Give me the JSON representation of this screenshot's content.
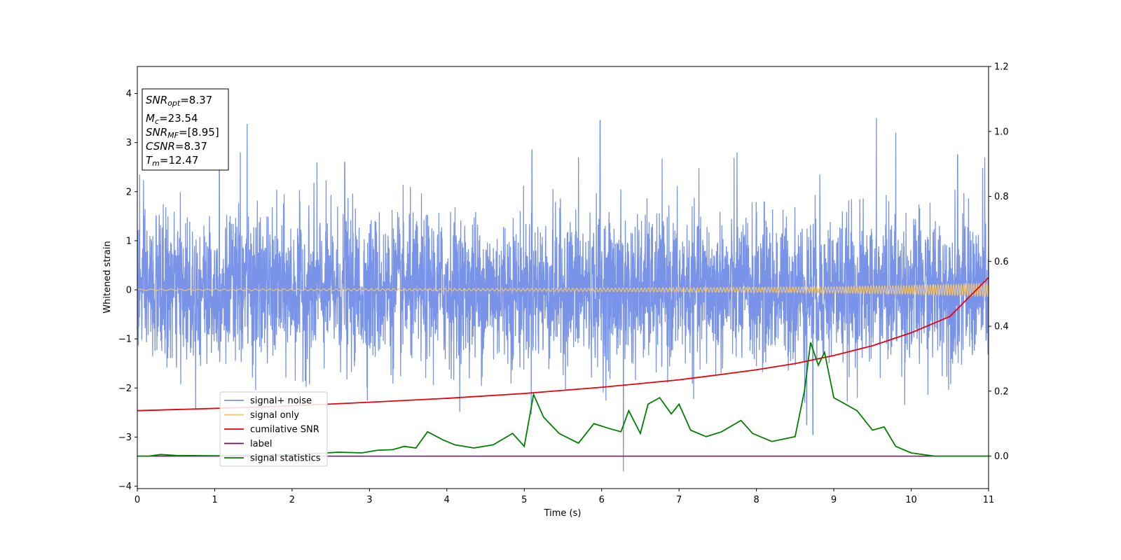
{
  "chart_data": {
    "type": "line",
    "xlabel": "Time (s)",
    "ylabel": "Whitened strain",
    "xlim": [
      0,
      11
    ],
    "ylim": [
      -4.05,
      4.55
    ],
    "y2lim": [
      -0.1,
      1.2
    ],
    "grid": false,
    "legend_position": "lower-left",
    "x_ticks": [
      "0",
      "1",
      "2",
      "3",
      "4",
      "5",
      "6",
      "7",
      "8",
      "9",
      "10",
      "11"
    ],
    "y_ticks": [
      "−4",
      "−3",
      "−2",
      "−1",
      "0",
      "1",
      "2",
      "3",
      "4"
    ],
    "y_tick_values": [
      -4,
      -3,
      -2,
      -1,
      0,
      1,
      2,
      3,
      4
    ],
    "y2_ticks": [
      "0.0",
      "0.2",
      "0.4",
      "0.6",
      "0.8",
      "1.0",
      "1.2"
    ],
    "y2_tick_values": [
      0,
      0.2,
      0.4,
      0.6,
      0.8,
      1.0,
      1.2
    ],
    "annotation": {
      "snr_opt": {
        "base": "SNR",
        "sub": "opt",
        "value": "=8.37"
      },
      "mc": {
        "base": "M",
        "sub": "c",
        "value": "=23.54"
      },
      "snr_mf": {
        "base": "SNR",
        "sub": "MF",
        "value": "=[8.95]"
      },
      "csnr": {
        "base": "CSNR",
        "sub": "",
        "value": "=8.37"
      },
      "tm": {
        "base": "T",
        "sub": "m",
        "value": "=12.47"
      }
    },
    "series": [
      {
        "name": "signal+ noise",
        "axis": "left",
        "color": "#7893e8",
        "stats": {
          "std": 0.75,
          "min": -3.7,
          "max": 3.5
        },
        "spikes": [
          [
            0.03,
            2.35
          ],
          [
            1.06,
            2.55
          ],
          [
            1.33,
            2.8
          ],
          [
            1.42,
            3.38
          ],
          [
            2.32,
            2.6
          ],
          [
            2.68,
            2.6
          ],
          [
            5.1,
            2.85
          ],
          [
            5.7,
            2.7
          ],
          [
            5.98,
            3.45
          ],
          [
            6.28,
            -3.7
          ],
          [
            7.75,
            2.8
          ],
          [
            8.65,
            -2.75
          ],
          [
            8.73,
            -2.95
          ],
          [
            8.82,
            2.35
          ],
          [
            9.55,
            3.52
          ],
          [
            9.8,
            3.2
          ],
          [
            10.6,
            2.75
          ],
          [
            10.95,
            2.7
          ]
        ]
      },
      {
        "name": "signal only",
        "axis": "left",
        "color": "#f5c46a",
        "points": [
          [
            0,
            0.015
          ],
          [
            2,
            0.02
          ],
          [
            4,
            0.025
          ],
          [
            6,
            0.035
          ],
          [
            8,
            0.05
          ],
          [
            9,
            0.065
          ],
          [
            10,
            0.09
          ],
          [
            11,
            0.13
          ]
        ]
      },
      {
        "name": "cumilative SNR",
        "axis": "right",
        "color": "#e8000b",
        "points": [
          [
            0,
            0.14
          ],
          [
            1,
            0.147
          ],
          [
            2,
            0.155
          ],
          [
            3,
            0.166
          ],
          [
            4,
            0.178
          ],
          [
            5,
            0.193
          ],
          [
            6,
            0.212
          ],
          [
            7,
            0.235
          ],
          [
            7.5,
            0.25
          ],
          [
            8,
            0.266
          ],
          [
            8.5,
            0.285
          ],
          [
            9,
            0.31
          ],
          [
            9.5,
            0.34
          ],
          [
            10,
            0.38
          ],
          [
            10.5,
            0.43
          ],
          [
            11,
            0.55
          ]
        ]
      },
      {
        "name": "label",
        "axis": "right",
        "color": "#800080",
        "points": [
          [
            0,
            0.0
          ],
          [
            11,
            0.0
          ]
        ]
      },
      {
        "name": "signal statistics",
        "axis": "right",
        "color": "#008000",
        "points": [
          [
            0,
            0.0
          ],
          [
            0.15,
            0.0
          ],
          [
            0.3,
            0.005
          ],
          [
            0.5,
            0.002
          ],
          [
            1.0,
            0.001
          ],
          [
            1.5,
            0.002
          ],
          [
            2.0,
            0.005
          ],
          [
            2.3,
            0.008
          ],
          [
            2.6,
            0.012
          ],
          [
            2.9,
            0.01
          ],
          [
            3.1,
            0.018
          ],
          [
            3.3,
            0.02
          ],
          [
            3.45,
            0.03
          ],
          [
            3.6,
            0.025
          ],
          [
            3.75,
            0.075
          ],
          [
            3.95,
            0.05
          ],
          [
            4.1,
            0.035
          ],
          [
            4.35,
            0.025
          ],
          [
            4.6,
            0.035
          ],
          [
            4.85,
            0.07
          ],
          [
            5.0,
            0.03
          ],
          [
            5.12,
            0.19
          ],
          [
            5.25,
            0.12
          ],
          [
            5.45,
            0.07
          ],
          [
            5.7,
            0.04
          ],
          [
            5.9,
            0.1
          ],
          [
            6.1,
            0.085
          ],
          [
            6.25,
            0.075
          ],
          [
            6.35,
            0.14
          ],
          [
            6.5,
            0.07
          ],
          [
            6.6,
            0.16
          ],
          [
            6.75,
            0.18
          ],
          [
            6.9,
            0.13
          ],
          [
            7.0,
            0.16
          ],
          [
            7.15,
            0.08
          ],
          [
            7.35,
            0.06
          ],
          [
            7.55,
            0.075
          ],
          [
            7.8,
            0.11
          ],
          [
            7.95,
            0.07
          ],
          [
            8.2,
            0.045
          ],
          [
            8.5,
            0.06
          ],
          [
            8.62,
            0.2
          ],
          [
            8.7,
            0.35
          ],
          [
            8.8,
            0.28
          ],
          [
            8.88,
            0.32
          ],
          [
            9.0,
            0.18
          ],
          [
            9.15,
            0.16
          ],
          [
            9.3,
            0.14
          ],
          [
            9.5,
            0.08
          ],
          [
            9.65,
            0.09
          ],
          [
            9.8,
            0.03
          ],
          [
            10.0,
            0.01
          ],
          [
            10.3,
            0.0
          ],
          [
            11,
            0.0
          ]
        ]
      }
    ]
  }
}
